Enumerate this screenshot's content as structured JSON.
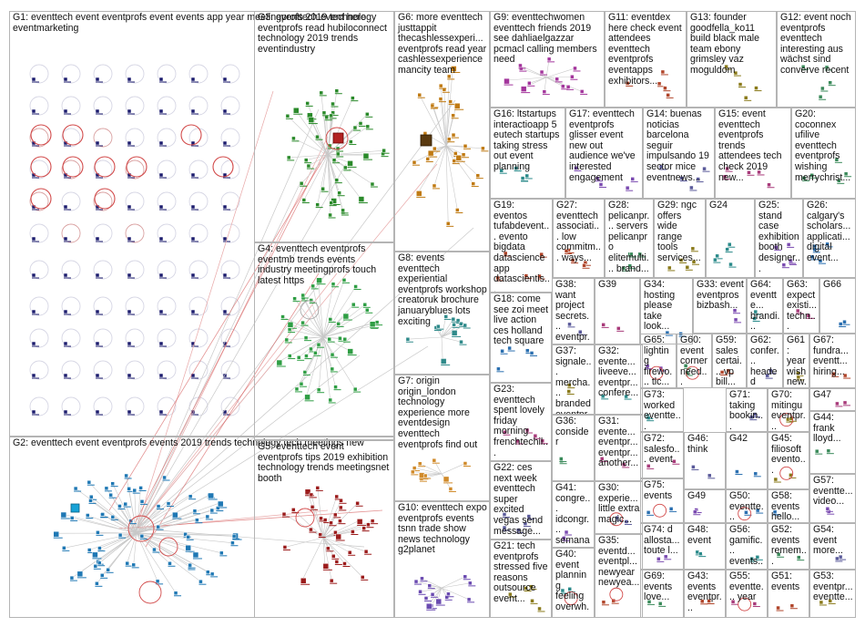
{
  "colors": {
    "background": "#ffffff",
    "box_border": "#b4b4b4",
    "text": "#111111",
    "edge_gray": "#c8c8c8",
    "edge_red": "#d24a4a",
    "g1": "#1c1c6e",
    "g2": "#1f78b4",
    "g3": "#2a8a2a",
    "g4": "#2f9e44",
    "g5": "#9b1c1c",
    "g6": "#c07a12",
    "g8": "#2f8a8a",
    "g9": "#a3359c",
    "g10": "#6a4ab0",
    "misc": "#4b6b2a"
  },
  "groups": [
    {
      "id": "g1",
      "label": "G1: eventtech event eventprofs event events app year meetingprofs 2019 technology eventmarketing"
    },
    {
      "id": "g2",
      "label": "G2: eventtech event eventprofs events 2019 trends technology tech meetings new"
    },
    {
      "id": "g3",
      "label": "G3: eventtech event here eventprofs read hubiloconnect technology 2019 trends eventindustry"
    },
    {
      "id": "g4",
      "label": "G4: eventtech eventprofs eventmb trends events industry meetingprofs touch latest https"
    },
    {
      "id": "g5",
      "label": "G5: eventtech event eventprofs tips 2019 exhibition technology trends meetingsnet booth"
    },
    {
      "id": "g6",
      "label": "G6: more eventtech justtappit thecashlessexperi... eventprofs read year cashlessexperience mancity team"
    },
    {
      "id": "g7",
      "label": "G7: origin origin_london technology experience more eventdesign eventtech eventprofs find out"
    },
    {
      "id": "g8",
      "label": "G8: events eventtech experiential eventprofs workshop creatoruk brochure januaryblues lots exciting"
    },
    {
      "id": "g9",
      "label": "G9: eventtechwomen eventtech friends 2019 see dahliaelgazzar pcmacl calling members need"
    },
    {
      "id": "g10",
      "label": "G10: eventtech expo eventprofs events tsnn trade show news technology g2planet"
    },
    {
      "id": "g11",
      "label": "G11: eventdex here check event attendees eventtech eventprofs eventapps exhibitors..."
    },
    {
      "id": "g12",
      "label": "G12: event noch eventprofs eventtech interesting aus wächst sind converve recent"
    },
    {
      "id": "g13",
      "label": "G13: founder goodfella_ko11 build black male team ebony grimsley vaz moguldom"
    },
    {
      "id": "g14",
      "label": "G14: buenas noticias barcelona seguir impulsando 19 sector mice eventnews..."
    },
    {
      "id": "g15",
      "label": "G15: event eventtech eventprofs trends attendees tech check 2019 new..."
    },
    {
      "id": "g16",
      "label": "G16: ltstartups interactioapp 5 eutech startups taking stress out event planning"
    },
    {
      "id": "g17",
      "label": "G17: eventtech eventprofs glisser event new out audience we've interested engagement"
    },
    {
      "id": "g18",
      "label": "G18: come see zoi meet live action ces holland tech square"
    },
    {
      "id": "g19",
      "label": "G19: eventos tufabdevent... evento bigdata datascience app datascientis..."
    },
    {
      "id": "g20",
      "label": "G20: coconnex ufilive eventtech eventprofs wishing merrychrist..."
    },
    {
      "id": "g21",
      "label": "G21: tech eventprofs stressed five reasons outsource event..."
    },
    {
      "id": "g22",
      "label": "G22: ces next week eventtech super excited vegas send message..."
    },
    {
      "id": "g23",
      "label": "G23: eventtech spent lovely friday morning frenchtechil..."
    },
    {
      "id": "g24",
      "label": "G24"
    },
    {
      "id": "g25",
      "label": "G25: stand case exhibition booth designer..."
    },
    {
      "id": "g26",
      "label": "G26: calgary's scholars... applicati... digital event..."
    },
    {
      "id": "g27",
      "label": "G27: eventtech associati... low commitm... ways..."
    },
    {
      "id": "g28",
      "label": "G28: pelicanpr... servers pelicanpro elitemulti... brand..."
    },
    {
      "id": "g29",
      "label": "G29: ngc offers wide range tools services..."
    },
    {
      "id": "g30",
      "label": "G30: experie... little extra magic..."
    },
    {
      "id": "g31",
      "label": "G31: evente... eventpr... eventpr... another..."
    },
    {
      "id": "g32",
      "label": "G32: evente... liveeve... eventpr... confere..."
    },
    {
      "id": "g33",
      "label": "G33: event eventpros bizbash..."
    },
    {
      "id": "g34",
      "label": "G34: hosting please take look..."
    },
    {
      "id": "g35",
      "label": "G35: eventd... eventpl... newyear newyea..."
    },
    {
      "id": "g36",
      "label": "G36: consider"
    },
    {
      "id": "g37",
      "label": "G37: signale... mercha... branded eventpr..."
    },
    {
      "id": "g38",
      "label": "G38: want project secrets... eventpr..."
    },
    {
      "id": "g39",
      "label": "G39"
    },
    {
      "id": "g40",
      "label": "G40: event planning feeling overwh..."
    },
    {
      "id": "g41",
      "label": "G41: congre... idcongr... semana os..."
    },
    {
      "id": "g42",
      "label": "G42"
    },
    {
      "id": "g43",
      "label": "G43: events eventpr..."
    },
    {
      "id": "g44",
      "label": "G44: frank lloyd..."
    },
    {
      "id": "g45",
      "label": "G45: filiosoft evento..."
    },
    {
      "id": "g46",
      "label": "G46: think"
    },
    {
      "id": "g47",
      "label": "G47"
    },
    {
      "id": "g48",
      "label": "G48: event"
    },
    {
      "id": "g49",
      "label": "G49"
    },
    {
      "id": "g50",
      "label": "G50: eventte... evente..."
    },
    {
      "id": "g51",
      "label": "G51: events"
    },
    {
      "id": "g52",
      "label": "G52: events remem..."
    },
    {
      "id": "g53",
      "label": "G53: eventpr... eventte..."
    },
    {
      "id": "g54",
      "label": "G54: event more..."
    },
    {
      "id": "g55",
      "label": "G55: eventte... year"
    },
    {
      "id": "g56",
      "label": "G56: gamific... events..."
    },
    {
      "id": "g57",
      "label": "G57: eventte... video..."
    },
    {
      "id": "g58",
      "label": "G58: events hello..."
    },
    {
      "id": "g59",
      "label": "G59: sales certai... vp bill..."
    },
    {
      "id": "g60",
      "label": "G60: event corner need..."
    },
    {
      "id": "g61",
      "label": "G61: year wish new..."
    },
    {
      "id": "g62",
      "label": "G62: confer... headed back..."
    },
    {
      "id": "g63",
      "label": "G63: expect existi... techn..."
    },
    {
      "id": "g64",
      "label": "G64: eventte... brandi... demo..."
    },
    {
      "id": "g65",
      "label": "G65: lighting firewo... tlc..."
    },
    {
      "id": "g66",
      "label": "G66"
    },
    {
      "id": "g67",
      "label": "G67: fundra... eventt... hiring..."
    },
    {
      "id": "g69",
      "label": "G69: events love..."
    },
    {
      "id": "g70",
      "label": "G70: mitingu eventpr..."
    },
    {
      "id": "g71",
      "label": "G71: taking bookin..."
    },
    {
      "id": "g72",
      "label": "G72: salesfo... event"
    },
    {
      "id": "g73",
      "label": "G73: worked eventte..."
    },
    {
      "id": "g74",
      "label": "G74: d allosta... toute l..."
    },
    {
      "id": "g75",
      "label": "G75: events"
    }
  ]
}
